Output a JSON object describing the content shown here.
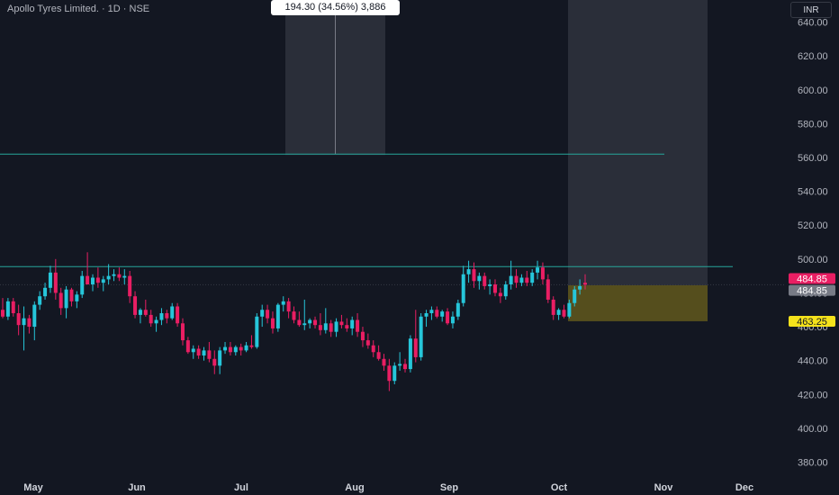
{
  "header": {
    "symbol_label": "Apollo Tyres Limited. · 1D · NSE",
    "currency": "INR"
  },
  "measure_label": "194.30 (34.56%) 3,886",
  "price_labels": {
    "last_price": "484.85",
    "prev_price": "484.85",
    "target_price": "463.25"
  },
  "colors": {
    "background": "#131722",
    "up": "#26c6da",
    "down": "#e91e63",
    "resistance_line": "#26a69a",
    "last_price_badge": "#e91e63",
    "prev_price_badge": "#787b86",
    "target_badge": "#f5e21b",
    "zone_fill": "#8d7b1a"
  },
  "chart_data": {
    "type": "candlestick",
    "y_axis": {
      "range": [
        370,
        645
      ],
      "ticks": [
        "380.00",
        "400.00",
        "420.00",
        "440.00",
        "460.00",
        "480.00",
        "500.00",
        "520.00",
        "540.00",
        "560.00",
        "580.00",
        "600.00",
        "620.00",
        "640.00"
      ]
    },
    "x_axis": {
      "ticks": [
        "May",
        "Jun",
        "Jul",
        "Aug",
        "Sep",
        "Oct",
        "Nov",
        "Dec"
      ]
    },
    "horizontal_lines": [
      {
        "price": 562
      },
      {
        "price": 495.5
      }
    ],
    "zones": [
      {
        "type": "target",
        "top": 484.5,
        "bottom": 463.25
      },
      {
        "type": "projection",
        "top": 645,
        "bottom": 484.5
      }
    ],
    "candles": [
      {
        "o": 470,
        "h": 477,
        "l": 465,
        "c": 466
      },
      {
        "o": 466,
        "h": 477,
        "l": 464,
        "c": 475
      },
      {
        "o": 475,
        "h": 477,
        "l": 466,
        "c": 468
      },
      {
        "o": 468,
        "h": 473,
        "l": 455,
        "c": 461
      },
      {
        "o": 461,
        "h": 472,
        "l": 446,
        "c": 465
      },
      {
        "o": 465,
        "h": 467,
        "l": 456,
        "c": 460
      },
      {
        "o": 460,
        "h": 475,
        "l": 452,
        "c": 473
      },
      {
        "o": 473,
        "h": 481,
        "l": 470,
        "c": 478
      },
      {
        "o": 478,
        "h": 486,
        "l": 476,
        "c": 483
      },
      {
        "o": 483,
        "h": 496,
        "l": 480,
        "c": 492
      },
      {
        "o": 492,
        "h": 500,
        "l": 476,
        "c": 480
      },
      {
        "o": 480,
        "h": 483,
        "l": 467,
        "c": 471
      },
      {
        "o": 471,
        "h": 484,
        "l": 465,
        "c": 482
      },
      {
        "o": 482,
        "h": 483,
        "l": 472,
        "c": 475
      },
      {
        "o": 475,
        "h": 481,
        "l": 471,
        "c": 479
      },
      {
        "o": 479,
        "h": 493,
        "l": 477,
        "c": 490
      },
      {
        "o": 490,
        "h": 504,
        "l": 487,
        "c": 485
      },
      {
        "o": 485,
        "h": 491,
        "l": 481,
        "c": 489
      },
      {
        "o": 489,
        "h": 495,
        "l": 483,
        "c": 486
      },
      {
        "o": 486,
        "h": 490,
        "l": 481,
        "c": 488
      },
      {
        "o": 488,
        "h": 497,
        "l": 485,
        "c": 490
      },
      {
        "o": 490,
        "h": 494,
        "l": 487,
        "c": 491
      },
      {
        "o": 491,
        "h": 495,
        "l": 487,
        "c": 489
      },
      {
        "o": 489,
        "h": 494,
        "l": 485,
        "c": 490
      },
      {
        "o": 490,
        "h": 493,
        "l": 474,
        "c": 478
      },
      {
        "o": 478,
        "h": 481,
        "l": 465,
        "c": 467
      },
      {
        "o": 467,
        "h": 471,
        "l": 462,
        "c": 470
      },
      {
        "o": 470,
        "h": 476,
        "l": 466,
        "c": 467
      },
      {
        "o": 467,
        "h": 470,
        "l": 460,
        "c": 462
      },
      {
        "o": 462,
        "h": 466,
        "l": 457,
        "c": 464
      },
      {
        "o": 464,
        "h": 471,
        "l": 461,
        "c": 468
      },
      {
        "o": 468,
        "h": 470,
        "l": 462,
        "c": 465
      },
      {
        "o": 465,
        "h": 474,
        "l": 464,
        "c": 472
      },
      {
        "o": 472,
        "h": 474,
        "l": 460,
        "c": 462
      },
      {
        "o": 462,
        "h": 465,
        "l": 449,
        "c": 452
      },
      {
        "o": 452,
        "h": 454,
        "l": 444,
        "c": 445
      },
      {
        "o": 445,
        "h": 449,
        "l": 441,
        "c": 447
      },
      {
        "o": 447,
        "h": 449,
        "l": 441,
        "c": 443
      },
      {
        "o": 443,
        "h": 448,
        "l": 440,
        "c": 446
      },
      {
        "o": 446,
        "h": 451,
        "l": 439,
        "c": 441
      },
      {
        "o": 441,
        "h": 446,
        "l": 432,
        "c": 437
      },
      {
        "o": 437,
        "h": 448,
        "l": 432,
        "c": 446
      },
      {
        "o": 446,
        "h": 451,
        "l": 444,
        "c": 448
      },
      {
        "o": 448,
        "h": 451,
        "l": 443,
        "c": 445
      },
      {
        "o": 445,
        "h": 449,
        "l": 443,
        "c": 448
      },
      {
        "o": 448,
        "h": 450,
        "l": 443,
        "c": 446
      },
      {
        "o": 446,
        "h": 451,
        "l": 445,
        "c": 449
      },
      {
        "o": 449,
        "h": 455,
        "l": 447,
        "c": 448
      },
      {
        "o": 448,
        "h": 468,
        "l": 447,
        "c": 466
      },
      {
        "o": 466,
        "h": 473,
        "l": 460,
        "c": 470
      },
      {
        "o": 470,
        "h": 473,
        "l": 462,
        "c": 465
      },
      {
        "o": 465,
        "h": 469,
        "l": 456,
        "c": 459
      },
      {
        "o": 459,
        "h": 474,
        "l": 457,
        "c": 473
      },
      {
        "o": 473,
        "h": 478,
        "l": 469,
        "c": 475
      },
      {
        "o": 475,
        "h": 477,
        "l": 465,
        "c": 469
      },
      {
        "o": 469,
        "h": 472,
        "l": 462,
        "c": 464
      },
      {
        "o": 464,
        "h": 469,
        "l": 460,
        "c": 461
      },
      {
        "o": 461,
        "h": 476,
        "l": 458,
        "c": 462
      },
      {
        "o": 462,
        "h": 465,
        "l": 459,
        "c": 464
      },
      {
        "o": 464,
        "h": 466,
        "l": 459,
        "c": 461
      },
      {
        "o": 461,
        "h": 468,
        "l": 455,
        "c": 458
      },
      {
        "o": 458,
        "h": 471,
        "l": 456,
        "c": 462
      },
      {
        "o": 462,
        "h": 464,
        "l": 454,
        "c": 457
      },
      {
        "o": 457,
        "h": 465,
        "l": 454,
        "c": 463
      },
      {
        "o": 463,
        "h": 467,
        "l": 459,
        "c": 461
      },
      {
        "o": 461,
        "h": 465,
        "l": 457,
        "c": 459
      },
      {
        "o": 459,
        "h": 466,
        "l": 455,
        "c": 464
      },
      {
        "o": 464,
        "h": 468,
        "l": 454,
        "c": 457
      },
      {
        "o": 457,
        "h": 460,
        "l": 448,
        "c": 452
      },
      {
        "o": 452,
        "h": 456,
        "l": 447,
        "c": 449
      },
      {
        "o": 449,
        "h": 452,
        "l": 442,
        "c": 445
      },
      {
        "o": 445,
        "h": 449,
        "l": 440,
        "c": 441
      },
      {
        "o": 441,
        "h": 444,
        "l": 434,
        "c": 437
      },
      {
        "o": 437,
        "h": 441,
        "l": 422,
        "c": 428
      },
      {
        "o": 428,
        "h": 439,
        "l": 426,
        "c": 437
      },
      {
        "o": 437,
        "h": 445,
        "l": 434,
        "c": 438
      },
      {
        "o": 438,
        "h": 441,
        "l": 433,
        "c": 435
      },
      {
        "o": 435,
        "h": 455,
        "l": 433,
        "c": 453
      },
      {
        "o": 453,
        "h": 470,
        "l": 439,
        "c": 442
      },
      {
        "o": 442,
        "h": 468,
        "l": 440,
        "c": 466
      },
      {
        "o": 466,
        "h": 470,
        "l": 460,
        "c": 468
      },
      {
        "o": 468,
        "h": 472,
        "l": 464,
        "c": 470
      },
      {
        "o": 470,
        "h": 472,
        "l": 465,
        "c": 466
      },
      {
        "o": 466,
        "h": 470,
        "l": 463,
        "c": 469
      },
      {
        "o": 469,
        "h": 471,
        "l": 461,
        "c": 462
      },
      {
        "o": 462,
        "h": 469,
        "l": 459,
        "c": 466
      },
      {
        "o": 466,
        "h": 476,
        "l": 464,
        "c": 474
      },
      {
        "o": 474,
        "h": 496,
        "l": 472,
        "c": 491
      },
      {
        "o": 491,
        "h": 499,
        "l": 486,
        "c": 494
      },
      {
        "o": 494,
        "h": 498,
        "l": 483,
        "c": 487
      },
      {
        "o": 487,
        "h": 492,
        "l": 482,
        "c": 490
      },
      {
        "o": 490,
        "h": 492,
        "l": 482,
        "c": 484
      },
      {
        "o": 484,
        "h": 488,
        "l": 479,
        "c": 485
      },
      {
        "o": 485,
        "h": 488,
        "l": 478,
        "c": 480
      },
      {
        "o": 480,
        "h": 483,
        "l": 474,
        "c": 478
      },
      {
        "o": 478,
        "h": 487,
        "l": 476,
        "c": 485
      },
      {
        "o": 485,
        "h": 499,
        "l": 482,
        "c": 490
      },
      {
        "o": 490,
        "h": 494,
        "l": 483,
        "c": 486
      },
      {
        "o": 486,
        "h": 491,
        "l": 484,
        "c": 489
      },
      {
        "o": 489,
        "h": 493,
        "l": 484,
        "c": 486
      },
      {
        "o": 486,
        "h": 494,
        "l": 484,
        "c": 492
      },
      {
        "o": 492,
        "h": 499,
        "l": 488,
        "c": 495
      },
      {
        "o": 495,
        "h": 498,
        "l": 485,
        "c": 488
      },
      {
        "o": 488,
        "h": 491,
        "l": 474,
        "c": 476
      },
      {
        "o": 476,
        "h": 478,
        "l": 464,
        "c": 467
      },
      {
        "o": 467,
        "h": 471,
        "l": 464,
        "c": 470
      },
      {
        "o": 470,
        "h": 473,
        "l": 465,
        "c": 466
      },
      {
        "o": 466,
        "h": 476,
        "l": 465,
        "c": 474
      },
      {
        "o": 474,
        "h": 484,
        "l": 472,
        "c": 482
      },
      {
        "o": 482,
        "h": 488,
        "l": 479,
        "c": 484
      },
      {
        "o": 486,
        "h": 491,
        "l": 482,
        "c": 484.85
      }
    ]
  }
}
